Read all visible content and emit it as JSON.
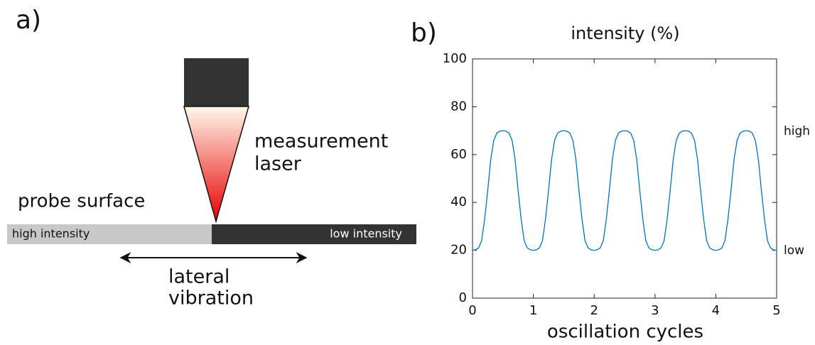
{
  "diagram": {
    "panel_label": "a)",
    "laser_label": [
      "measurement",
      "laser"
    ],
    "surface_label": "probe surface",
    "high_region": "high intensity",
    "low_region": "low intensity",
    "motion_label": [
      "lateral",
      "vibration"
    ]
  },
  "chart_data": {
    "type": "line",
    "panel_label": "b)",
    "title": "intensity (%)",
    "x_label": "oscillation cycles",
    "right_labels": [
      "high",
      "low"
    ],
    "xlim": [
      0,
      5
    ],
    "ylim": [
      0,
      100
    ],
    "xticks": [
      0,
      1,
      2,
      3,
      4,
      5
    ],
    "yticks": [
      0,
      20,
      40,
      60,
      80,
      100
    ],
    "x": [
      0,
      0.05,
      0.1,
      0.15,
      0.2,
      0.25,
      0.3,
      0.35,
      0.4,
      0.45,
      0.5,
      0.55,
      0.6,
      0.65,
      0.7,
      0.75,
      0.8,
      0.85,
      0.9,
      0.95,
      1,
      1.05,
      1.1,
      1.15,
      1.2,
      1.25,
      1.3,
      1.35,
      1.4,
      1.45,
      1.5,
      1.55,
      1.6,
      1.65,
      1.7,
      1.75,
      1.8,
      1.85,
      1.9,
      1.95,
      2,
      2.05,
      2.1,
      2.15,
      2.2,
      2.25,
      2.3,
      2.35,
      2.4,
      2.45,
      2.5,
      2.55,
      2.6,
      2.65,
      2.7,
      2.75,
      2.8,
      2.85,
      2.9,
      2.95,
      3,
      3.05,
      3.1,
      3.15,
      3.2,
      3.25,
      3.3,
      3.35,
      3.4,
      3.45,
      3.5,
      3.55,
      3.6,
      3.65,
      3.7,
      3.75,
      3.8,
      3.85,
      3.9,
      3.95,
      4,
      4.05,
      4.1,
      4.15,
      4.2,
      4.25,
      4.3,
      4.35,
      4.4,
      4.45,
      4.5,
      4.55,
      4.6,
      4.65,
      4.7,
      4.75,
      4.8,
      4.85,
      4.9,
      4.95,
      5
    ],
    "series": [
      {
        "color": "#0072bd",
        "values": [
          20,
          20.2,
          21,
          24,
          33,
          45,
          58,
          66,
          69,
          69.8,
          70,
          69.8,
          69,
          66,
          58,
          45,
          33,
          24,
          21,
          20.2,
          20,
          20.2,
          21,
          24,
          33,
          45,
          58,
          66,
          69,
          69.8,
          70,
          69.8,
          69,
          66,
          58,
          45,
          33,
          24,
          21,
          20.2,
          20,
          20.2,
          21,
          24,
          33,
          45,
          58,
          66,
          69,
          69.8,
          70,
          69.8,
          69,
          66,
          58,
          45,
          33,
          24,
          21,
          20.2,
          20,
          20.2,
          21,
          24,
          33,
          45,
          58,
          66,
          69,
          69.8,
          70,
          69.8,
          69,
          66,
          58,
          45,
          33,
          24,
          21,
          20.2,
          20,
          20.2,
          21,
          24,
          33,
          45,
          58,
          66,
          69,
          69.8,
          70,
          69.8,
          69,
          66,
          58,
          45,
          33,
          24,
          21,
          20.2,
          20
        ]
      }
    ]
  }
}
